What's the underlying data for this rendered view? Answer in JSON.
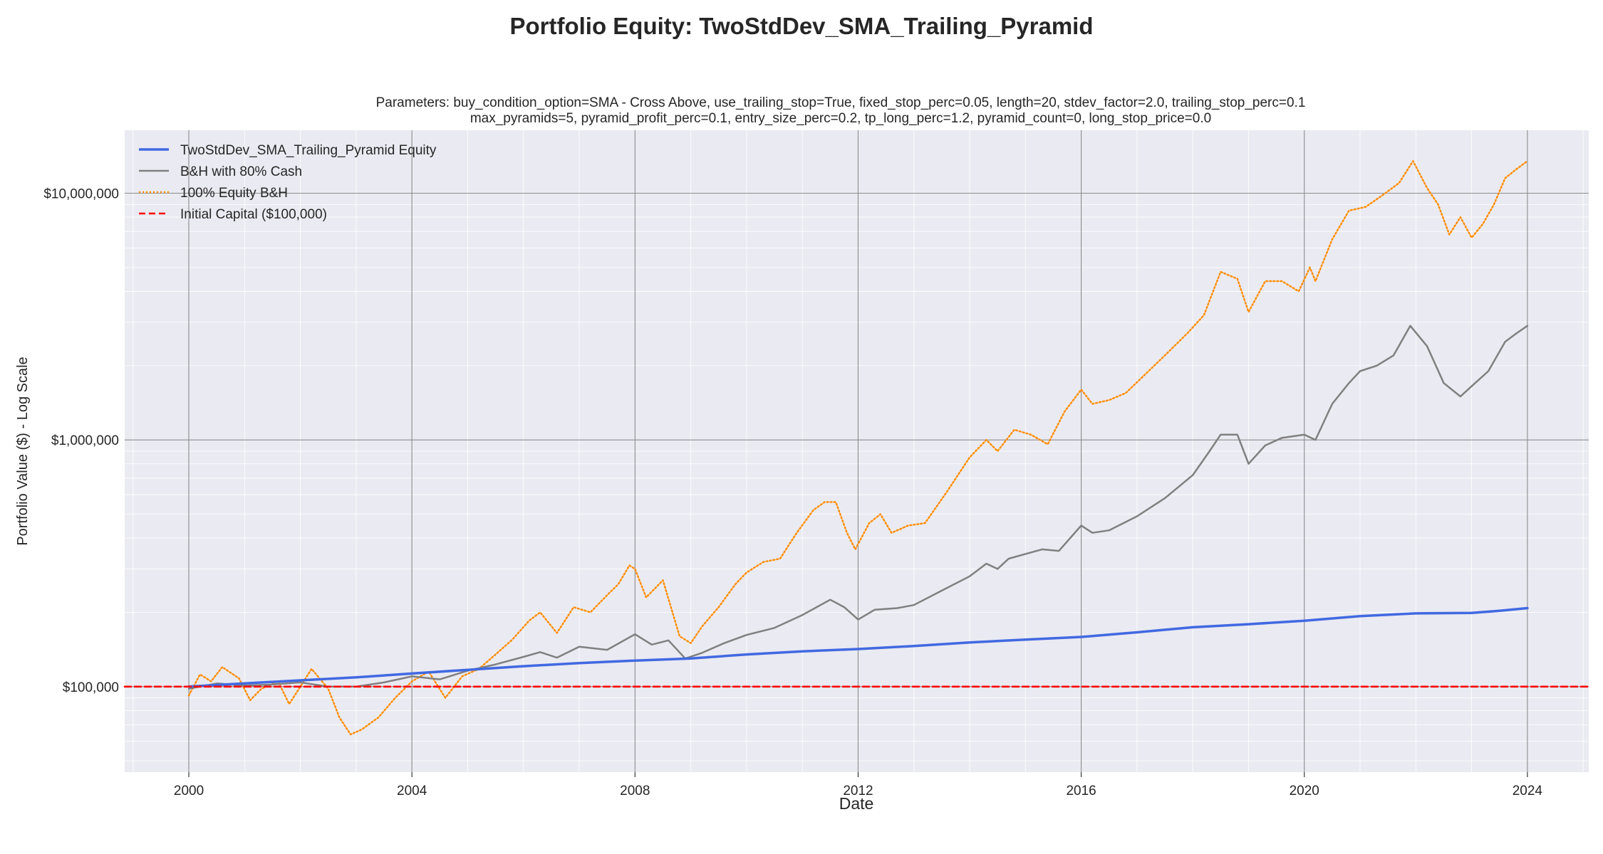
{
  "chart_data": {
    "type": "line",
    "title": "Portfolio Equity: TwoStdDev_SMA_Trailing_Pyramid",
    "subtitle_lines": [
      "Parameters: buy_condition_option=SMA - Cross Above, use_trailing_stop=True, fixed_stop_perc=0.05, length=20, stdev_factor=2.0, trailing_stop_perc=0.1",
      "max_pyramids=5, pyramid_profit_perc=0.1, entry_size_perc=0.2, tp_long_perc=1.2, pyramid_count=0, long_stop_price=0.0"
    ],
    "xlabel": "Date",
    "ylabel": "Portfolio Value ($) - Log Scale",
    "x_scale": "time",
    "y_scale": "log",
    "xlim": [
      1998.85,
      2025.1
    ],
    "ylim": [
      45000,
      18000000
    ],
    "x_ticks": [
      2000,
      2004,
      2008,
      2012,
      2016,
      2020,
      2024
    ],
    "x_tick_labels": [
      "2000",
      "2004",
      "2008",
      "2012",
      "2016",
      "2020",
      "2024"
    ],
    "y_ticks": [
      100000,
      1000000,
      10000000
    ],
    "y_tick_labels": [
      "$100,000",
      "$1,000,000",
      "$10,000,000"
    ],
    "grid": true,
    "legend_position": "top-left",
    "colors": {
      "strategy": "#4169e1",
      "bh_cash": "#808080",
      "bh_full": "#ff8c00",
      "initial": "#ff0000",
      "axes_bg": "#eaeaf2"
    },
    "series": [
      {
        "name": "TwoStdDev_SMA_Trailing_Pyramid Equity",
        "style": "solid",
        "points": [
          [
            2000.0,
            100000
          ],
          [
            2001.0,
            103000
          ],
          [
            2002.0,
            106000
          ],
          [
            2003.0,
            109000
          ],
          [
            2004.0,
            113000
          ],
          [
            2005.0,
            117000
          ],
          [
            2006.0,
            121000
          ],
          [
            2007.0,
            124500
          ],
          [
            2008.0,
            127500
          ],
          [
            2009.0,
            130000
          ],
          [
            2010.0,
            135000
          ],
          [
            2011.0,
            139000
          ],
          [
            2012.0,
            142000
          ],
          [
            2013.0,
            146000
          ],
          [
            2014.0,
            151000
          ],
          [
            2015.0,
            155000
          ],
          [
            2016.0,
            159000
          ],
          [
            2017.0,
            166000
          ],
          [
            2018.0,
            174000
          ],
          [
            2019.0,
            179000
          ],
          [
            2020.0,
            185000
          ],
          [
            2021.0,
            193000
          ],
          [
            2022.0,
            198000
          ],
          [
            2023.0,
            199000
          ],
          [
            2023.5,
            203000
          ],
          [
            2024.0,
            208000
          ]
        ]
      },
      {
        "name": "B&H with 80% Cash",
        "style": "solid",
        "points": [
          [
            2000.0,
            98000
          ],
          [
            2000.5,
            103000
          ],
          [
            2001.0,
            101000
          ],
          [
            2001.5,
            102000
          ],
          [
            2002.0,
            104000
          ],
          [
            2002.5,
            100000
          ],
          [
            2003.0,
            100000
          ],
          [
            2003.5,
            104000
          ],
          [
            2004.0,
            110000
          ],
          [
            2004.5,
            107000
          ],
          [
            2005.0,
            116000
          ],
          [
            2005.5,
            123000
          ],
          [
            2006.0,
            132000
          ],
          [
            2006.3,
            138000
          ],
          [
            2006.6,
            131000
          ],
          [
            2007.0,
            145000
          ],
          [
            2007.5,
            141000
          ],
          [
            2008.0,
            163000
          ],
          [
            2008.3,
            148000
          ],
          [
            2008.6,
            154000
          ],
          [
            2008.9,
            130000
          ],
          [
            2009.2,
            137000
          ],
          [
            2009.6,
            150000
          ],
          [
            2010.0,
            162000
          ],
          [
            2010.5,
            173000
          ],
          [
            2011.0,
            195000
          ],
          [
            2011.5,
            225000
          ],
          [
            2011.75,
            210000
          ],
          [
            2012.0,
            187000
          ],
          [
            2012.3,
            205000
          ],
          [
            2012.7,
            208000
          ],
          [
            2013.0,
            214000
          ],
          [
            2013.5,
            245000
          ],
          [
            2014.0,
            280000
          ],
          [
            2014.3,
            315000
          ],
          [
            2014.5,
            300000
          ],
          [
            2014.7,
            330000
          ],
          [
            2015.0,
            345000
          ],
          [
            2015.3,
            360000
          ],
          [
            2015.6,
            355000
          ],
          [
            2016.0,
            450000
          ],
          [
            2016.2,
            420000
          ],
          [
            2016.5,
            430000
          ],
          [
            2017.0,
            490000
          ],
          [
            2017.5,
            580000
          ],
          [
            2018.0,
            720000
          ],
          [
            2018.3,
            900000
          ],
          [
            2018.5,
            1050000
          ],
          [
            2018.8,
            1050000
          ],
          [
            2019.0,
            800000
          ],
          [
            2019.3,
            950000
          ],
          [
            2019.6,
            1020000
          ],
          [
            2020.0,
            1050000
          ],
          [
            2020.2,
            1000000
          ],
          [
            2020.5,
            1400000
          ],
          [
            2020.8,
            1700000
          ],
          [
            2021.0,
            1900000
          ],
          [
            2021.3,
            2000000
          ],
          [
            2021.6,
            2200000
          ],
          [
            2021.9,
            2900000
          ],
          [
            2022.2,
            2400000
          ],
          [
            2022.5,
            1700000
          ],
          [
            2022.8,
            1500000
          ],
          [
            2023.0,
            1650000
          ],
          [
            2023.3,
            1900000
          ],
          [
            2023.6,
            2500000
          ],
          [
            2023.8,
            2700000
          ],
          [
            2024.0,
            2900000
          ]
        ]
      },
      {
        "name": "100% Equity B&H",
        "style": "dotted",
        "points": [
          [
            2000.0,
            92000
          ],
          [
            2000.2,
            112000
          ],
          [
            2000.4,
            105000
          ],
          [
            2000.6,
            120000
          ],
          [
            2000.9,
            108000
          ],
          [
            2001.1,
            88000
          ],
          [
            2001.3,
            98000
          ],
          [
            2001.6,
            105000
          ],
          [
            2001.8,
            85000
          ],
          [
            2002.0,
            100000
          ],
          [
            2002.2,
            118000
          ],
          [
            2002.5,
            98000
          ],
          [
            2002.7,
            75000
          ],
          [
            2002.9,
            64000
          ],
          [
            2003.1,
            67000
          ],
          [
            2003.4,
            75000
          ],
          [
            2003.7,
            90000
          ],
          [
            2004.0,
            105000
          ],
          [
            2004.3,
            115000
          ],
          [
            2004.6,
            90000
          ],
          [
            2004.9,
            110000
          ],
          [
            2005.2,
            118000
          ],
          [
            2005.5,
            135000
          ],
          [
            2005.8,
            155000
          ],
          [
            2006.1,
            185000
          ],
          [
            2006.3,
            200000
          ],
          [
            2006.6,
            165000
          ],
          [
            2006.9,
            210000
          ],
          [
            2007.2,
            200000
          ],
          [
            2007.5,
            235000
          ],
          [
            2007.7,
            260000
          ],
          [
            2007.9,
            310000
          ],
          [
            2008.0,
            300000
          ],
          [
            2008.2,
            230000
          ],
          [
            2008.5,
            270000
          ],
          [
            2008.8,
            160000
          ],
          [
            2009.0,
            150000
          ],
          [
            2009.2,
            175000
          ],
          [
            2009.5,
            210000
          ],
          [
            2009.8,
            260000
          ],
          [
            2010.0,
            290000
          ],
          [
            2010.3,
            320000
          ],
          [
            2010.6,
            330000
          ],
          [
            2010.9,
            420000
          ],
          [
            2011.2,
            520000
          ],
          [
            2011.4,
            560000
          ],
          [
            2011.6,
            560000
          ],
          [
            2011.8,
            420000
          ],
          [
            2011.95,
            360000
          ],
          [
            2012.2,
            460000
          ],
          [
            2012.4,
            500000
          ],
          [
            2012.6,
            420000
          ],
          [
            2012.9,
            450000
          ],
          [
            2013.2,
            460000
          ],
          [
            2013.6,
            620000
          ],
          [
            2014.0,
            850000
          ],
          [
            2014.3,
            1000000
          ],
          [
            2014.5,
            900000
          ],
          [
            2014.8,
            1100000
          ],
          [
            2015.1,
            1050000
          ],
          [
            2015.4,
            960000
          ],
          [
            2015.7,
            1300000
          ],
          [
            2016.0,
            1600000
          ],
          [
            2016.2,
            1400000
          ],
          [
            2016.5,
            1450000
          ],
          [
            2016.8,
            1550000
          ],
          [
            2017.1,
            1800000
          ],
          [
            2017.5,
            2200000
          ],
          [
            2017.9,
            2700000
          ],
          [
            2018.2,
            3200000
          ],
          [
            2018.5,
            4800000
          ],
          [
            2018.8,
            4500000
          ],
          [
            2019.0,
            3300000
          ],
          [
            2019.3,
            4400000
          ],
          [
            2019.6,
            4400000
          ],
          [
            2019.9,
            4000000
          ],
          [
            2020.1,
            5000000
          ],
          [
            2020.2,
            4400000
          ],
          [
            2020.5,
            6500000
          ],
          [
            2020.8,
            8500000
          ],
          [
            2021.1,
            8800000
          ],
          [
            2021.4,
            9800000
          ],
          [
            2021.7,
            11000000
          ],
          [
            2021.95,
            13500000
          ],
          [
            2022.2,
            10500000
          ],
          [
            2022.4,
            9000000
          ],
          [
            2022.6,
            6800000
          ],
          [
            2022.8,
            8000000
          ],
          [
            2023.0,
            6600000
          ],
          [
            2023.2,
            7500000
          ],
          [
            2023.4,
            9000000
          ],
          [
            2023.6,
            11500000
          ],
          [
            2023.8,
            12500000
          ],
          [
            2024.0,
            13500000
          ]
        ]
      },
      {
        "name": "Initial Capital ($100,000)",
        "style": "dashed",
        "constant": 100000
      }
    ]
  }
}
